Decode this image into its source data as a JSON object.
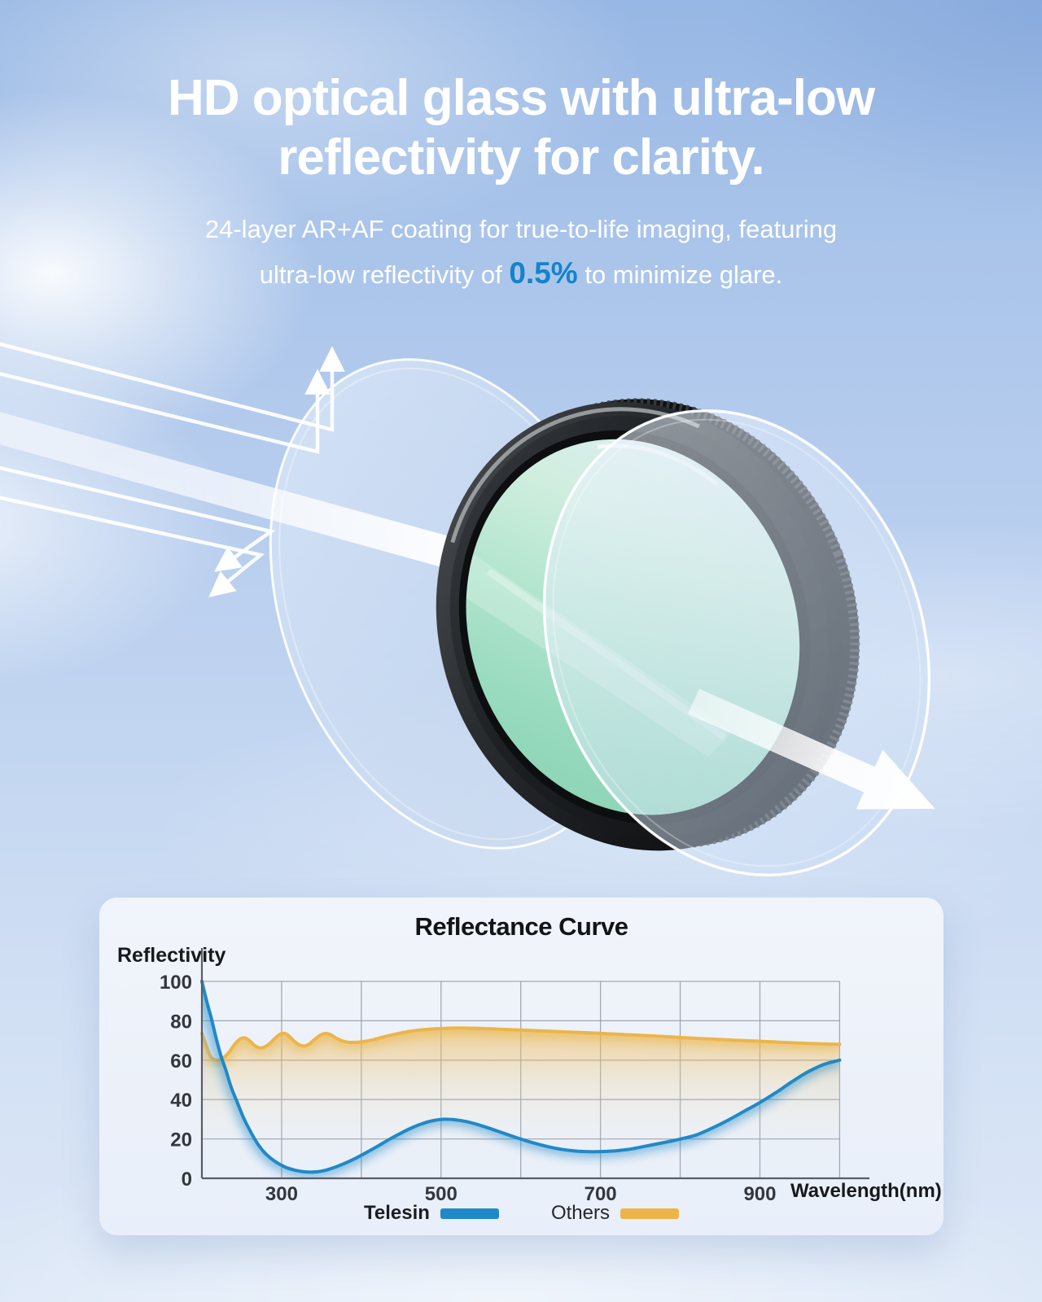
{
  "hero": {
    "title_line1": "HD optical glass with ultra-low",
    "title_line2": "reflectivity for clarity.",
    "subtitle_line1": "24-layer AR+AF coating for true-to-life imaging, featuring",
    "subtitle_line2_prefix": "ultra-low reflectivity of ",
    "subtitle_accent": "0.5%",
    "subtitle_line2_suffix": " to minimize glare.",
    "accent_color": "#1583cb"
  },
  "chart_data": {
    "type": "area",
    "title": "Reflectance Curve",
    "xlabel": "Wavelength(nm)",
    "ylabel": "Reflectivity",
    "xlim": [
      200,
      1000
    ],
    "ylim": [
      0,
      100
    ],
    "xticks": [
      300,
      500,
      700,
      900
    ],
    "yticks": [
      100,
      80,
      60,
      40,
      20,
      0
    ],
    "grid": true,
    "legend_position": "bottom",
    "series": [
      {
        "name": "Telesin",
        "color": "#2089c7",
        "points": [
          [
            200,
            100
          ],
          [
            206,
            90
          ],
          [
            212,
            81
          ],
          [
            218,
            71
          ],
          [
            224,
            62
          ],
          [
            230,
            55
          ],
          [
            237,
            46
          ],
          [
            244,
            39
          ],
          [
            252,
            31
          ],
          [
            260,
            24.5
          ],
          [
            270,
            17.5
          ],
          [
            280,
            12.5
          ],
          [
            292,
            8.5
          ],
          [
            304,
            5.8
          ],
          [
            316,
            4.2
          ],
          [
            328,
            3.3
          ],
          [
            340,
            3.2
          ],
          [
            352,
            3.8
          ],
          [
            364,
            5.2
          ],
          [
            378,
            7.4
          ],
          [
            392,
            10
          ],
          [
            406,
            13
          ],
          [
            420,
            16.2
          ],
          [
            434,
            19.5
          ],
          [
            448,
            22.6
          ],
          [
            462,
            25.4
          ],
          [
            476,
            27.7
          ],
          [
            490,
            29.3
          ],
          [
            504,
            30
          ],
          [
            518,
            29.7
          ],
          [
            532,
            28.8
          ],
          [
            546,
            27.3
          ],
          [
            560,
            25.5
          ],
          [
            575,
            23.4
          ],
          [
            590,
            21.3
          ],
          [
            605,
            19.3
          ],
          [
            620,
            17.5
          ],
          [
            635,
            16
          ],
          [
            650,
            14.8
          ],
          [
            665,
            14
          ],
          [
            680,
            13.6
          ],
          [
            695,
            13.5
          ],
          [
            710,
            13.7
          ],
          [
            725,
            14.2
          ],
          [
            740,
            15
          ],
          [
            760,
            16.6
          ],
          [
            780,
            18.2
          ],
          [
            800,
            19.9
          ],
          [
            820,
            22
          ],
          [
            840,
            25.5
          ],
          [
            860,
            29.5
          ],
          [
            880,
            34
          ],
          [
            900,
            38.5
          ],
          [
            920,
            43.5
          ],
          [
            940,
            49
          ],
          [
            960,
            54
          ],
          [
            980,
            57.8
          ],
          [
            1000,
            60
          ]
        ]
      },
      {
        "name": "Others",
        "color": "#ecb54a",
        "points": [
          [
            200,
            73.5
          ],
          [
            205,
            68
          ],
          [
            210,
            62.5
          ],
          [
            215,
            60.3
          ],
          [
            221,
            60
          ],
          [
            228,
            61.5
          ],
          [
            235,
            64.5
          ],
          [
            242,
            68.5
          ],
          [
            248,
            70.8
          ],
          [
            254,
            71.3
          ],
          [
            260,
            69.8
          ],
          [
            266,
            67.5
          ],
          [
            272,
            66.3
          ],
          [
            278,
            66.6
          ],
          [
            285,
            68.4
          ],
          [
            292,
            71.2
          ],
          [
            298,
            73.2
          ],
          [
            304,
            73.6
          ],
          [
            310,
            72
          ],
          [
            316,
            69.6
          ],
          [
            322,
            67.8
          ],
          [
            328,
            67.2
          ],
          [
            334,
            68
          ],
          [
            340,
            70
          ],
          [
            347,
            72.3
          ],
          [
            354,
            73.5
          ],
          [
            361,
            73
          ],
          [
            368,
            71.3
          ],
          [
            376,
            69.8
          ],
          [
            384,
            69.1
          ],
          [
            392,
            69
          ],
          [
            402,
            69.4
          ],
          [
            414,
            70.3
          ],
          [
            428,
            71.8
          ],
          [
            444,
            73.3
          ],
          [
            460,
            74.6
          ],
          [
            478,
            75.5
          ],
          [
            496,
            76
          ],
          [
            520,
            76.3
          ],
          [
            545,
            76.2
          ],
          [
            570,
            75.8
          ],
          [
            600,
            75.3
          ],
          [
            630,
            74.8
          ],
          [
            660,
            74.3
          ],
          [
            690,
            73.8
          ],
          [
            720,
            73.2
          ],
          [
            750,
            72.6
          ],
          [
            780,
            72
          ],
          [
            810,
            71.3
          ],
          [
            840,
            70.7
          ],
          [
            870,
            70.1
          ],
          [
            900,
            69.6
          ],
          [
            930,
            69
          ],
          [
            960,
            68.5
          ],
          [
            1000,
            68
          ]
        ]
      }
    ]
  }
}
